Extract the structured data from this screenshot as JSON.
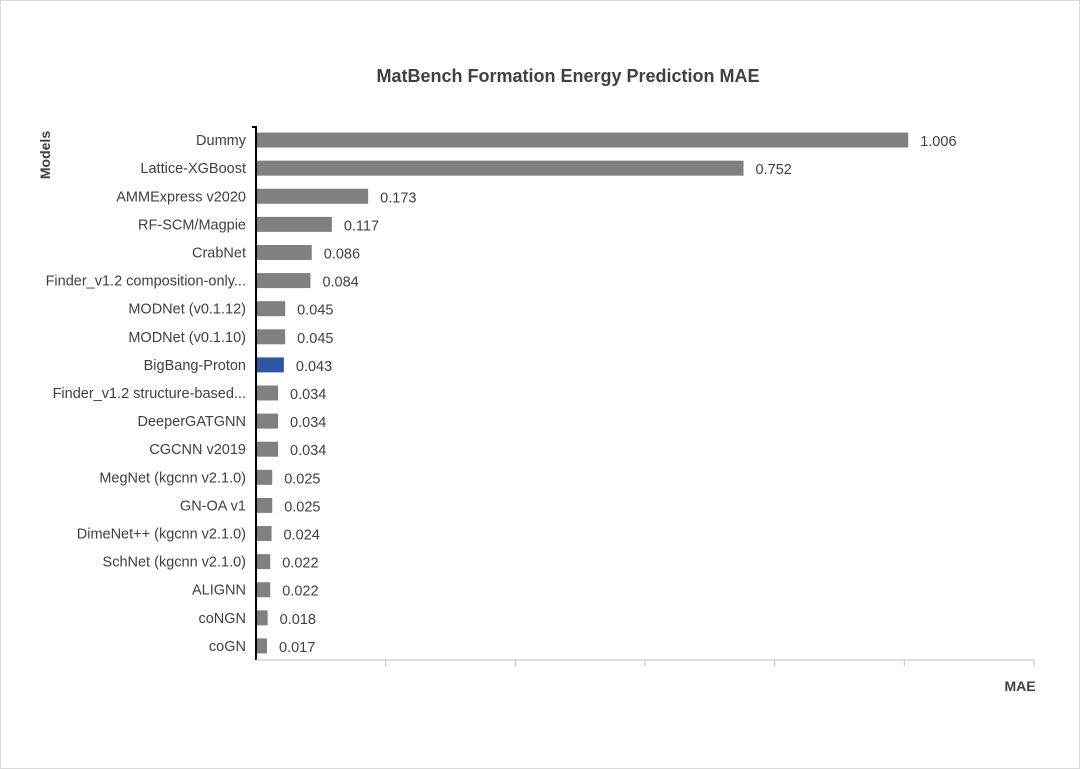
{
  "chart_data": {
    "type": "bar",
    "orientation": "horizontal",
    "title": "MatBench Formation Energy Prediction MAE",
    "xlabel": "MAE",
    "ylabel": "Models",
    "xlim": [
      0,
      1.2
    ],
    "grid": false,
    "legend": "none",
    "colors": {
      "default": "#808080",
      "highlight": "#2f55a4",
      "axis": "#000000",
      "tick": "#bfbfbf",
      "text": "#404040"
    },
    "highlight_category": "BigBang-Proton",
    "categories": [
      "Dummy",
      "Lattice-XGBoost",
      "AMMExpress v2020",
      "RF-SCM/Magpie",
      "CrabNet",
      "Finder_v1.2  composition-only...",
      "MODNet (v0.1.12)",
      "MODNet (v0.1.10)",
      "BigBang-Proton",
      "Finder_v1.2 structure-based...",
      "DeeperGATGNN",
      "CGCNN v2019",
      "MegNet (kgcnn v2.1.0)",
      "GN-OA v1",
      "DimeNet++ (kgcnn v2.1.0)",
      "SchNet (kgcnn v2.1.0)",
      "ALIGNN",
      "coNGN",
      "coGN"
    ],
    "values": [
      1.006,
      0.752,
      0.173,
      0.117,
      0.086,
      0.084,
      0.045,
      0.045,
      0.043,
      0.034,
      0.034,
      0.034,
      0.025,
      0.025,
      0.024,
      0.022,
      0.022,
      0.018,
      0.017
    ],
    "value_labels": [
      "1.006",
      "0.752",
      "0.173",
      "0.117",
      "0.086",
      "0.084",
      "0.045",
      "0.045",
      "0.043",
      "0.034",
      "0.034",
      "0.034",
      "0.025",
      "0.025",
      "0.024",
      "0.022",
      "0.022",
      "0.018",
      "0.017"
    ],
    "x_tick_count": 6
  }
}
